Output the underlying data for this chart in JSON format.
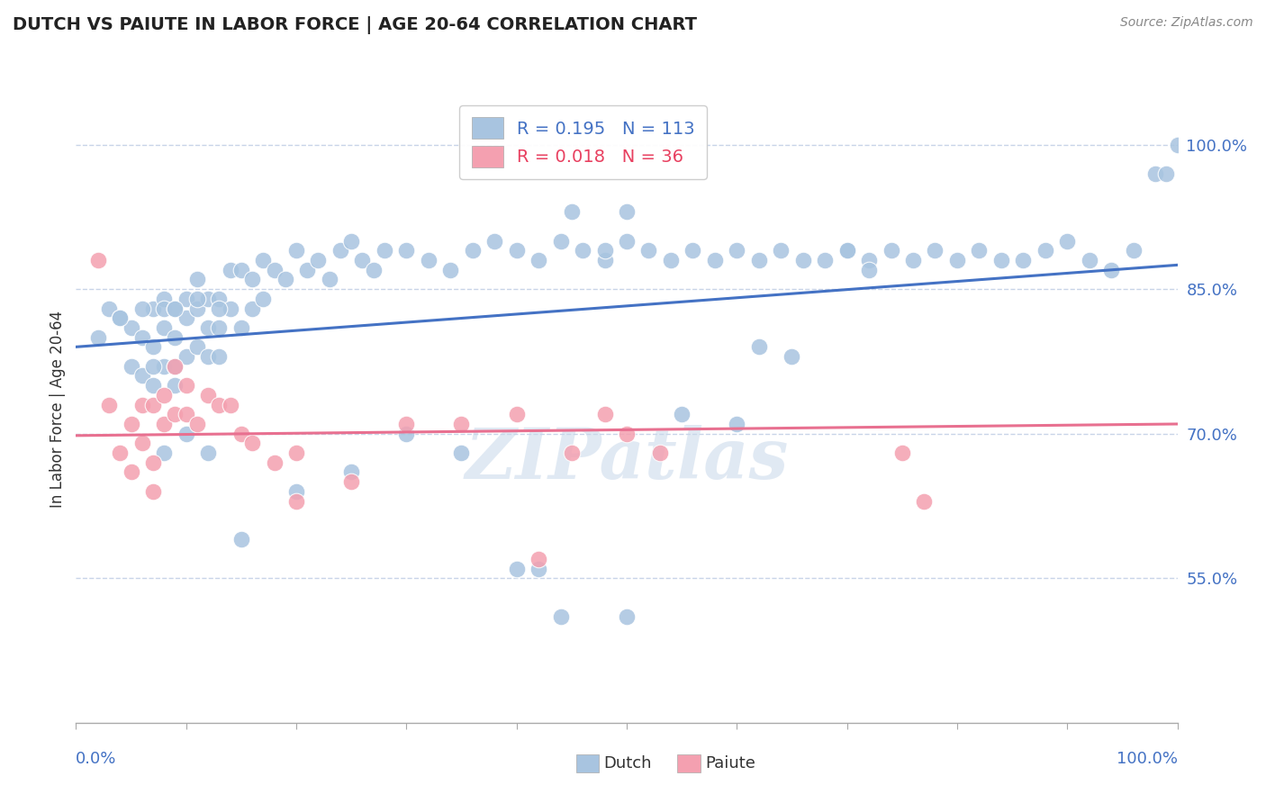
{
  "title": "DUTCH VS PAIUTE IN LABOR FORCE | AGE 20-64 CORRELATION CHART",
  "source": "Source: ZipAtlas.com",
  "ylabel": "In Labor Force | Age 20-64",
  "ytick_labels": [
    "55.0%",
    "70.0%",
    "85.0%",
    "100.0%"
  ],
  "ytick_values": [
    0.55,
    0.7,
    0.85,
    1.0
  ],
  "xmin": 0.0,
  "xmax": 1.0,
  "ymin": 0.4,
  "ymax": 1.05,
  "dutch_color": "#a8c4e0",
  "paiute_color": "#f4a0b0",
  "dutch_line_color": "#4472c4",
  "paiute_line_color": "#e87090",
  "legend_R_dutch": "0.195",
  "legend_N_dutch": "113",
  "legend_R_paiute": "0.018",
  "legend_N_paiute": "36",
  "watermark": "ZIPatlas",
  "background_color": "#ffffff",
  "grid_color": "#c8d4e8",
  "dutch_scatter_x": [
    0.02,
    0.03,
    0.04,
    0.05,
    0.05,
    0.06,
    0.06,
    0.07,
    0.07,
    0.07,
    0.08,
    0.08,
    0.08,
    0.08,
    0.09,
    0.09,
    0.09,
    0.09,
    0.1,
    0.1,
    0.1,
    0.11,
    0.11,
    0.11,
    0.12,
    0.12,
    0.12,
    0.13,
    0.13,
    0.13,
    0.14,
    0.14,
    0.15,
    0.15,
    0.16,
    0.16,
    0.17,
    0.17,
    0.18,
    0.19,
    0.2,
    0.21,
    0.22,
    0.23,
    0.24,
    0.25,
    0.26,
    0.27,
    0.28,
    0.3,
    0.32,
    0.34,
    0.36,
    0.38,
    0.4,
    0.42,
    0.44,
    0.46,
    0.48,
    0.5,
    0.52,
    0.54,
    0.56,
    0.58,
    0.6,
    0.62,
    0.64,
    0.66,
    0.68,
    0.7,
    0.72,
    0.74,
    0.76,
    0.78,
    0.8,
    0.82,
    0.84,
    0.86,
    0.88,
    0.9,
    0.92,
    0.94,
    0.96,
    0.98,
    0.99,
    1.0,
    0.5,
    0.55,
    0.6,
    0.62,
    0.45,
    0.48,
    0.65,
    0.7,
    0.72,
    0.3,
    0.35,
    0.2,
    0.25,
    0.15,
    0.12,
    0.1,
    0.08,
    0.06,
    0.04,
    0.07,
    0.09,
    0.11,
    0.13,
    0.4,
    0.42,
    0.44,
    0.5
  ],
  "dutch_scatter_y": [
    0.8,
    0.83,
    0.82,
    0.81,
    0.77,
    0.8,
    0.76,
    0.83,
    0.79,
    0.75,
    0.84,
    0.81,
    0.77,
    0.83,
    0.83,
    0.8,
    0.77,
    0.75,
    0.84,
    0.82,
    0.78,
    0.86,
    0.83,
    0.79,
    0.84,
    0.81,
    0.78,
    0.84,
    0.81,
    0.78,
    0.87,
    0.83,
    0.87,
    0.81,
    0.86,
    0.83,
    0.88,
    0.84,
    0.87,
    0.86,
    0.89,
    0.87,
    0.88,
    0.86,
    0.89,
    0.9,
    0.88,
    0.87,
    0.89,
    0.89,
    0.88,
    0.87,
    0.89,
    0.9,
    0.89,
    0.88,
    0.9,
    0.89,
    0.88,
    0.9,
    0.89,
    0.88,
    0.89,
    0.88,
    0.89,
    0.88,
    0.89,
    0.88,
    0.88,
    0.89,
    0.88,
    0.89,
    0.88,
    0.89,
    0.88,
    0.89,
    0.88,
    0.88,
    0.89,
    0.9,
    0.88,
    0.87,
    0.89,
    0.97,
    0.97,
    1.0,
    0.93,
    0.72,
    0.71,
    0.79,
    0.93,
    0.89,
    0.78,
    0.89,
    0.87,
    0.7,
    0.68,
    0.64,
    0.66,
    0.59,
    0.68,
    0.7,
    0.68,
    0.83,
    0.82,
    0.77,
    0.83,
    0.84,
    0.83,
    0.56,
    0.56,
    0.51,
    0.51
  ],
  "paiute_scatter_x": [
    0.02,
    0.03,
    0.04,
    0.05,
    0.05,
    0.06,
    0.06,
    0.07,
    0.07,
    0.08,
    0.08,
    0.09,
    0.09,
    0.1,
    0.1,
    0.11,
    0.12,
    0.13,
    0.14,
    0.15,
    0.16,
    0.18,
    0.2,
    0.25,
    0.3,
    0.35,
    0.4,
    0.45,
    0.5,
    0.53,
    0.75,
    0.77,
    0.48,
    0.2,
    0.07,
    0.42
  ],
  "paiute_scatter_y": [
    0.88,
    0.73,
    0.68,
    0.71,
    0.66,
    0.73,
    0.69,
    0.73,
    0.67,
    0.74,
    0.71,
    0.77,
    0.72,
    0.75,
    0.72,
    0.71,
    0.74,
    0.73,
    0.73,
    0.7,
    0.69,
    0.67,
    0.68,
    0.65,
    0.71,
    0.71,
    0.72,
    0.68,
    0.7,
    0.68,
    0.68,
    0.63,
    0.72,
    0.63,
    0.64,
    0.57
  ],
  "dutch_trend_x": [
    0.0,
    1.0
  ],
  "dutch_trend_y": [
    0.79,
    0.875
  ],
  "paiute_trend_x": [
    0.0,
    1.0
  ],
  "paiute_trend_y": [
    0.698,
    0.71
  ]
}
